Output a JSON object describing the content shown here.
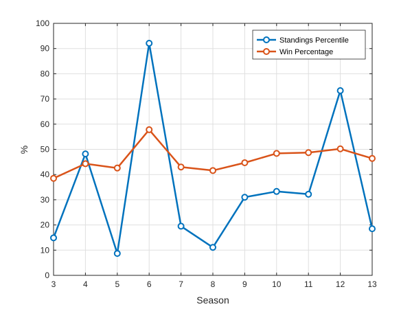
{
  "chart_data": {
    "type": "line",
    "xlabel": "Season",
    "ylabel": "%",
    "x": [
      3,
      4,
      5,
      6,
      7,
      8,
      9,
      10,
      11,
      12,
      13
    ],
    "xlim": [
      3,
      13
    ],
    "ylim": [
      0,
      100
    ],
    "xticks": [
      3,
      4,
      5,
      6,
      7,
      8,
      9,
      10,
      11,
      12,
      13
    ],
    "yticks": [
      0,
      10,
      20,
      30,
      40,
      50,
      60,
      70,
      80,
      90,
      100
    ],
    "grid": true,
    "legend_position": "top-right",
    "series": [
      {
        "name": "Standings Percentile",
        "color": "#0072BD",
        "marker": "circle",
        "values": [
          14.9,
          48.2,
          8.7,
          92.1,
          19.5,
          11.1,
          31.0,
          33.3,
          32.2,
          73.3,
          18.5
        ]
      },
      {
        "name": "Win Percentage",
        "color": "#D95319",
        "marker": "circle",
        "values": [
          38.5,
          44.3,
          42.6,
          57.8,
          43.0,
          41.6,
          44.7,
          48.4,
          48.7,
          50.2,
          46.4
        ]
      }
    ]
  }
}
